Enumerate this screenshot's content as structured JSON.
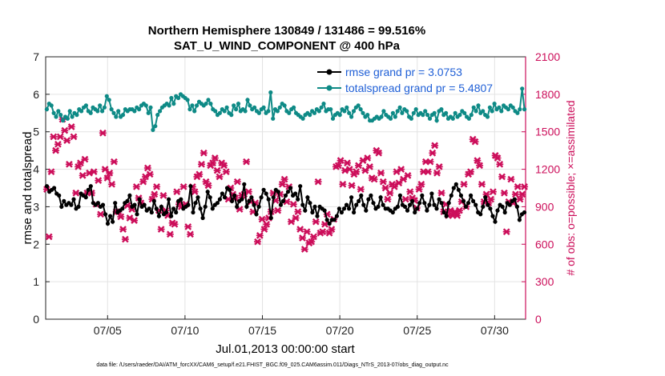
{
  "chart_data": {
    "type": "line",
    "title": "Northern Hemisphere 130849 / 131486 = 99.516%",
    "subtitle": "SAT_U_WIND_COMPONENT @ 400 hPa",
    "xlabel": "Jul.01,2013 00:00:00 start",
    "ylabel": "rmse and totalspread",
    "ylabel_right": "# of obs: o=possible; ×=assimilated",
    "footnote": "data file: /Users/raeder/DAI/ATM_forcXX/CAM6_setup/f.e21.FHIST_BGC.f09_025.CAM6assim.011/Diags_NTrS_2013-07/obs_diag_output.nc",
    "xticks": [
      "07/05",
      "07/10",
      "07/15",
      "07/20",
      "07/25",
      "07/30"
    ],
    "xtick_days": [
      5,
      10,
      15,
      20,
      25,
      30
    ],
    "xlim_days": [
      1,
      32
    ],
    "ylim": [
      0,
      7
    ],
    "yticks": [
      "0",
      "1",
      "2",
      "3",
      "4",
      "5",
      "6",
      "7"
    ],
    "ylim_right": [
      0,
      2100
    ],
    "yticks_right": [
      "0",
      "300",
      "600",
      "900",
      "1200",
      "1500",
      "1800",
      "2100"
    ],
    "grid": true,
    "legend_position": "top-right",
    "colors": {
      "rmse": "#000000",
      "spread": "#0e8a86",
      "obs": "#cc0e5a"
    },
    "series": [
      {
        "name": "rmse grand pr = 3.0753",
        "values": [
          3.55,
          3.4,
          3.45,
          3.5,
          3.35,
          3.3,
          3.0,
          3.15,
          3.05,
          3.1,
          3.05,
          3.2,
          2.95,
          3.0,
          3.35,
          3.3,
          3.25,
          3.45,
          3.55,
          3.1,
          3.05,
          3.1,
          3.0,
          3.05,
          2.8,
          2.55,
          2.75,
          2.6,
          3.1,
          2.85,
          2.9,
          2.95,
          3.1,
          3.15,
          3.3,
          3.0,
          3.05,
          2.8,
          3.2,
          3.0,
          3.05,
          2.9,
          2.95,
          2.85,
          3.15,
          2.95,
          2.75,
          3.0,
          2.8,
          2.85,
          3.2,
          2.75,
          2.95,
          2.85,
          3.15,
          3.2,
          2.95,
          3.0,
          3.05,
          3.55,
          2.85,
          3.1,
          3.25,
          2.95,
          2.7,
          3.0,
          3.4,
          3.25,
          2.95,
          3.05,
          3.1,
          3.2,
          3.35,
          3.25,
          3.5,
          3.45,
          3.15,
          3.3,
          3.0,
          3.15,
          3.2,
          3.6,
          3.0,
          3.15,
          3.25,
          3.05,
          2.8,
          3.0,
          3.25,
          3.45,
          3.35,
          3.2,
          2.7,
          3.25,
          3.45,
          3.4,
          3.05,
          3.15,
          3.3,
          3.4,
          3.5,
          3.3,
          3.35,
          3.2,
          3.55,
          3.05,
          2.9,
          3.25,
          3.1,
          2.85,
          3.0,
          2.75,
          3.0,
          2.95,
          2.9,
          2.65,
          2.55,
          2.65,
          2.65,
          2.75,
          2.95,
          2.85,
          2.95,
          3.05,
          2.95,
          3.25,
          2.85,
          3.05,
          3.15,
          3.3,
          3.05,
          2.9,
          3.2,
          3.3,
          3.1,
          2.95,
          3.0,
          3.25,
          3.05,
          2.95,
          2.95,
          2.9,
          2.85,
          2.95,
          3.0,
          3.3,
          3.05,
          3.0,
          2.9,
          3.05,
          3.15,
          2.85,
          2.95,
          3.1,
          3.3,
          3.1,
          2.9,
          3.05,
          3.35,
          3.05,
          2.95,
          3.2,
          3.1,
          2.85,
          2.75,
          3.1,
          3.3,
          3.5,
          3.6,
          3.45,
          3.3,
          3.15,
          3.0,
          3.1,
          3.3,
          3.15,
          3.05,
          2.85,
          2.8,
          3.0,
          3.25,
          3.05,
          2.95,
          2.75,
          2.6,
          2.9,
          3.05,
          3.0,
          2.85,
          3.1,
          3.05,
          3.15,
          3.2,
          3.0,
          2.65,
          2.8,
          2.85
        ],
        "mark": "circle"
      },
      {
        "name": "totalspread grand pr = 5.4807",
        "values": [
          5.6,
          5.75,
          5.7,
          5.5,
          5.4,
          5.55,
          5.45,
          5.3,
          5.4,
          5.35,
          5.55,
          5.4,
          5.5,
          5.45,
          5.6,
          5.55,
          5.65,
          5.7,
          5.55,
          5.5,
          5.65,
          5.6,
          5.55,
          5.7,
          5.55,
          5.65,
          5.95,
          5.85,
          5.6,
          5.5,
          5.4,
          5.55,
          5.4,
          5.45,
          5.6,
          5.55,
          5.6,
          5.6,
          5.55,
          5.65,
          5.6,
          5.7,
          5.75,
          5.7,
          5.5,
          5.65,
          5.05,
          5.15,
          5.45,
          5.55,
          5.65,
          5.7,
          5.75,
          5.7,
          5.9,
          5.75,
          5.95,
          5.9,
          6.0,
          5.95,
          5.9,
          5.85,
          5.6,
          5.7,
          5.55,
          5.7,
          5.8,
          5.75,
          5.7,
          5.75,
          5.85,
          5.75,
          5.6,
          5.55,
          5.45,
          5.5,
          5.6,
          5.55,
          5.65,
          5.5,
          5.45,
          5.7,
          5.6,
          5.75,
          5.55,
          5.6,
          5.55,
          5.85,
          5.7,
          5.6,
          5.65,
          5.55,
          5.5,
          5.6,
          5.65,
          5.5,
          5.55,
          6.05,
          5.35,
          5.6,
          5.55,
          5.65,
          5.75,
          5.7,
          5.55,
          5.5,
          5.6,
          5.65,
          5.5,
          5.45,
          5.4,
          5.35,
          5.45,
          5.5,
          5.45,
          5.55,
          5.5,
          5.6,
          5.55,
          5.65,
          5.75,
          5.55,
          5.6,
          5.6,
          5.35,
          5.45,
          5.5,
          5.45,
          5.6,
          5.55,
          5.65,
          5.5,
          5.4,
          5.55,
          5.65,
          5.7,
          5.6,
          5.5,
          5.4,
          5.45,
          5.3,
          5.3,
          5.35,
          5.4,
          5.35,
          5.4,
          5.55,
          5.45,
          5.4,
          5.35,
          5.5,
          5.4,
          5.55,
          5.65,
          5.5,
          5.6,
          5.55,
          5.4,
          5.35,
          5.5,
          5.6,
          5.45,
          5.5,
          5.45,
          5.55,
          5.45,
          5.35,
          5.45,
          5.5,
          5.3,
          5.55,
          5.6,
          5.45,
          5.5,
          5.35,
          5.4,
          5.35,
          5.5,
          5.4,
          5.45,
          5.55,
          5.5,
          5.4,
          5.35,
          5.45,
          5.65,
          5.55,
          5.7,
          5.5,
          5.55,
          5.45,
          5.4,
          5.65,
          5.55,
          5.75,
          5.6,
          5.65,
          5.55,
          5.7,
          5.65,
          5.6,
          5.7,
          5.65,
          5.55,
          5.5,
          5.6,
          6.15,
          5.6
        ],
        "mark": "circle"
      },
      {
        "name": "# of obs assimilated",
        "axis": "right",
        "values": [
          1040,
          660,
          1180,
          1460,
          1350,
          1400,
          1460,
          1600,
          1510,
          1430,
          1240,
          1540,
          1460,
          1010,
          1220,
          1250,
          1150,
          1280,
          1010,
          1170,
          1010,
          1180,
          920,
          1110,
          840,
          1490,
          1200,
          1130,
          1170,
          1080,
          1260,
          860,
          860,
          820,
          720,
          640,
          910,
          810,
          880,
          790,
          1060,
          970,
          930,
          1100,
          1140,
          1210,
          1160,
          960,
          1000,
          1060,
          870,
          720,
          990,
          870,
          830,
          680,
          770,
          760,
          1020,
          920,
          900,
          1060,
          920,
          740,
          680,
          1060,
          1020,
          1140,
          1160,
          1240,
          1330,
          1100,
          1070,
          1230,
          1250,
          1290,
          1190,
          1140,
          1250,
          1230,
          1180,
          960,
          1050,
          1000,
          970,
          1100,
          880,
          990,
          1000,
          1260,
          1020,
          940,
          860,
          930,
          620,
          670,
          800,
          720,
          760,
          810,
          860,
          1010,
          950,
          870,
          1000,
          1080,
          1120,
          940,
          1060,
          780,
          920,
          810,
          860,
          720,
          650,
          560,
          700,
          610,
          620,
          660,
          780,
          1100,
          690,
          700,
          760,
          840,
          690,
          720,
          800,
          1220,
          1230,
          1270,
          1080,
          1190,
          1250,
          1200,
          1070,
          1160,
          1180,
          1230,
          1040,
          1270,
          1190,
          1290,
          1220,
          1130,
          1120,
          1350,
          1330,
          1170,
          1100,
          1050,
          960,
          1010,
          1080,
          1060,
          1180,
          1090,
          1200,
          1120,
          960,
          1150,
          1020,
          970,
          950,
          890,
          1040,
          1080,
          1180,
          1260,
          1180,
          1260,
          1330,
          1390,
          1170,
          1220,
          1010,
          860,
          920,
          830,
          870,
          830,
          860,
          830,
          870,
          940,
          1080,
          900,
          1160,
          1180,
          1440,
          1420,
          1270,
          1230,
          1080,
          940,
          1000,
          930,
          960,
          1020,
          1310,
          1290,
          1240,
          1140,
          1010,
          700,
          940,
          1120,
          930,
          1000,
          1060,
          960,
          1000,
          1060
        ],
        "mark": "x"
      }
    ]
  }
}
